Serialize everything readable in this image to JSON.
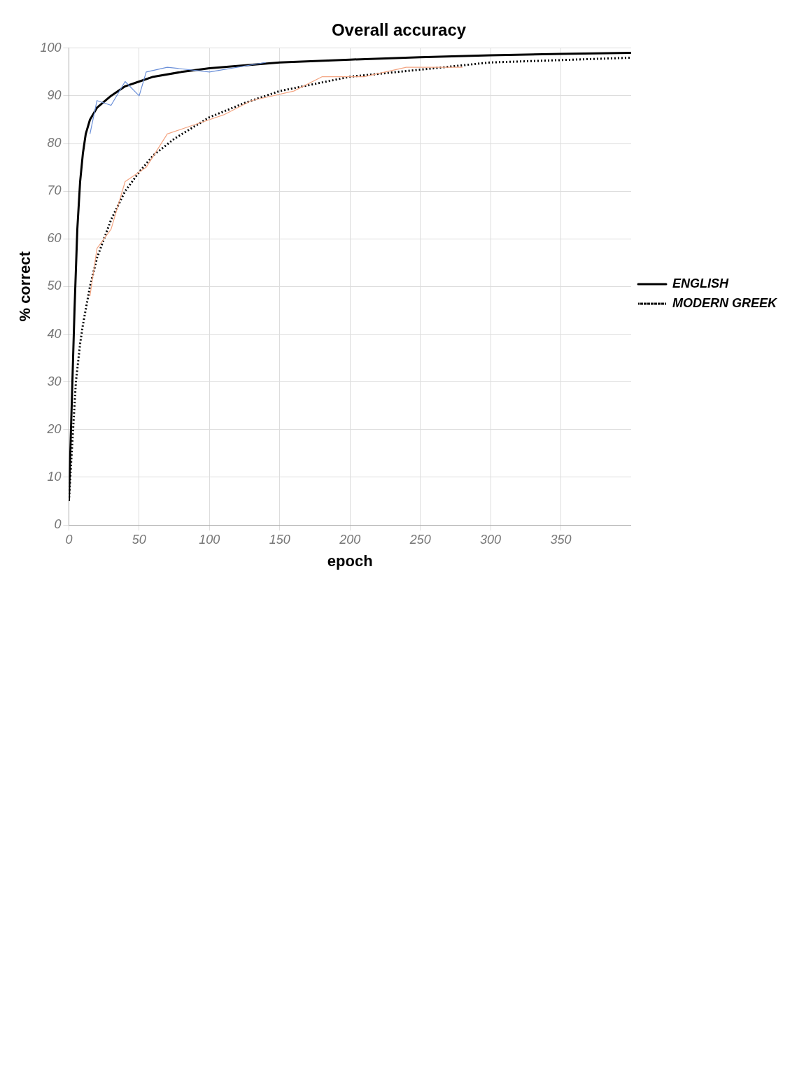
{
  "chart_data": {
    "type": "line",
    "title": "Overall accuracy",
    "xlabel": "epoch",
    "ylabel": "% correct",
    "xlim": [
      0,
      400
    ],
    "xticks": [
      0,
      50,
      100,
      150,
      200,
      250,
      300,
      350
    ],
    "ylim": [
      0,
      100
    ],
    "yticks": [
      0,
      10,
      20,
      30,
      40,
      50,
      60,
      70,
      80,
      90,
      100
    ],
    "grid": true,
    "legend": "right",
    "marker": "none",
    "series": [
      {
        "color": "#f4a582",
        "x": [
          15,
          20,
          30,
          40,
          55,
          70,
          90,
          110,
          130,
          160,
          180,
          210,
          240,
          280
        ],
        "values": [
          48,
          58,
          62,
          72,
          75,
          82,
          84,
          86,
          89,
          91,
          94,
          94,
          96,
          96
        ]
      },
      {
        "color": "#6a8fd8",
        "x": [
          15,
          20,
          30,
          40,
          50,
          55,
          70,
          100,
          140
        ],
        "values": [
          82,
          89,
          88,
          93,
          90,
          95,
          96,
          95,
          97
        ]
      },
      {
        "name": "ENGLISH",
        "color": "#000000",
        "line_style": "solid",
        "x": [
          0,
          2,
          4,
          6,
          8,
          10,
          12,
          15,
          20,
          30,
          40,
          50,
          60,
          80,
          100,
          150,
          200,
          250,
          300,
          350,
          400
        ],
        "values": [
          5,
          25,
          45,
          62,
          72,
          78,
          82,
          85,
          87.5,
          90,
          92,
          93,
          94,
          95,
          95.8,
          97,
          97.6,
          98.1,
          98.5,
          98.8,
          99
        ]
      },
      {
        "name": "MODERN GREEK",
        "color": "#000000",
        "line_style": "dotted",
        "x": [
          0,
          3,
          5,
          8,
          10,
          15,
          20,
          25,
          30,
          40,
          50,
          60,
          75,
          100,
          125,
          150,
          200,
          250,
          300,
          350,
          400
        ],
        "values": [
          5,
          20,
          30,
          38,
          42,
          50,
          56,
          60,
          64,
          70,
          74,
          77.5,
          81,
          85.5,
          88.5,
          91,
          94,
          95.5,
          97,
          97.5,
          98
        ]
      }
    ]
  }
}
